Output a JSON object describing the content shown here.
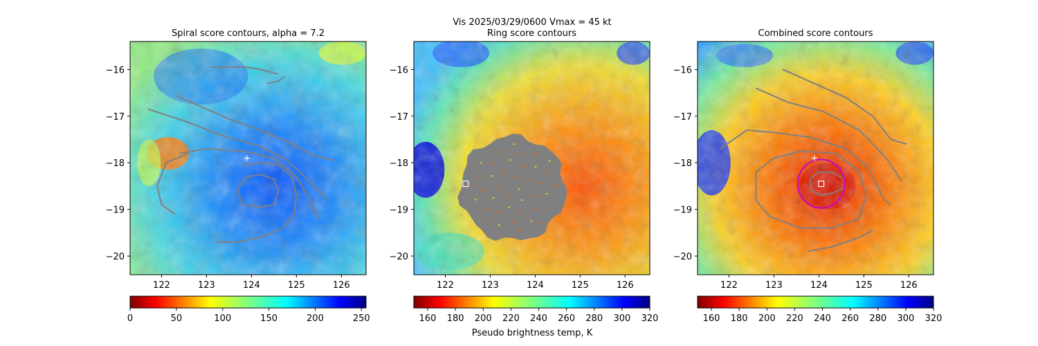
{
  "suptitle": "Vis  2025/03/29/0600    Vmax = 45 kt",
  "colorbar_label": "Pseudo brightness temp, K",
  "colors": {
    "contour": "#808080",
    "ring": "#cc00cc",
    "marker": "#ffffff",
    "mask": "#808080"
  },
  "chart_data": [
    {
      "type": "heatmap",
      "title": "Spiral score contours, alpha =  7.2",
      "xlim": [
        121.3,
        126.55
      ],
      "ylim": [
        -20.4,
        -15.4
      ],
      "xticks": [
        122,
        123,
        124,
        125,
        126
      ],
      "xtick_labels": [
        "122",
        "123",
        "124",
        "125",
        "126"
      ],
      "yticks": [
        -16,
        -17,
        -18,
        -19,
        -20
      ],
      "ytick_labels": [
        "−16",
        "−17",
        "−18",
        "−19",
        "−20"
      ],
      "colormap": "jet_r",
      "colorbar": {
        "range": [
          0,
          255
        ],
        "ticks": [
          0,
          50,
          100,
          150,
          200,
          250
        ],
        "tick_labels": [
          "0",
          "50",
          "100",
          "150",
          "200",
          "250"
        ]
      },
      "markers": [
        {
          "kind": "plus",
          "x": 123.9,
          "y": -17.9
        }
      ],
      "contours": [
        [
          [
            124.6,
            -16.1
          ],
          [
            124.2,
            -16.0
          ],
          [
            123.9,
            -15.95
          ],
          [
            123.6,
            -15.95
          ],
          [
            123.3,
            -15.95
          ],
          [
            123.1,
            -15.95
          ]
        ],
        [
          [
            124.75,
            -16.15
          ],
          [
            124.6,
            -16.25
          ],
          [
            124.35,
            -16.3
          ]
        ],
        [
          [
            122.3,
            -16.55
          ],
          [
            123.0,
            -16.85
          ],
          [
            123.6,
            -17.1
          ],
          [
            124.2,
            -17.3
          ],
          [
            124.8,
            -17.55
          ],
          [
            125.4,
            -17.85
          ],
          [
            125.85,
            -17.95
          ]
        ],
        [
          [
            121.7,
            -16.85
          ],
          [
            122.5,
            -17.1
          ],
          [
            123.3,
            -17.4
          ],
          [
            124.2,
            -17.65
          ],
          [
            124.8,
            -17.95
          ],
          [
            125.3,
            -18.4
          ],
          [
            125.7,
            -18.8
          ]
        ],
        [
          [
            122.4,
            -17.8
          ],
          [
            123.0,
            -17.7
          ],
          [
            123.8,
            -17.75
          ],
          [
            124.5,
            -17.9
          ],
          [
            125.0,
            -18.3
          ],
          [
            125.3,
            -18.8
          ],
          [
            125.5,
            -19.2
          ]
        ],
        [
          [
            121.9,
            -18.5
          ],
          [
            122.1,
            -18.0
          ],
          [
            122.6,
            -17.8
          ]
        ],
        [
          [
            121.9,
            -18.5
          ],
          [
            122.0,
            -18.9
          ],
          [
            122.3,
            -19.1
          ]
        ],
        [
          [
            123.2,
            -19.7
          ],
          [
            123.7,
            -19.7
          ],
          [
            124.2,
            -19.6
          ],
          [
            124.7,
            -19.4
          ],
          [
            124.95,
            -19.1
          ],
          [
            125.0,
            -18.7
          ],
          [
            124.9,
            -18.3
          ],
          [
            124.6,
            -18.05
          ],
          [
            124.2,
            -18.0
          ],
          [
            123.8,
            -18.05
          ]
        ],
        [
          [
            123.8,
            -18.9
          ],
          [
            124.2,
            -18.95
          ],
          [
            124.5,
            -18.9
          ],
          [
            124.6,
            -18.6
          ],
          [
            124.5,
            -18.35
          ],
          [
            124.2,
            -18.25
          ],
          [
            123.9,
            -18.3
          ],
          [
            123.7,
            -18.55
          ],
          [
            123.75,
            -18.8
          ],
          [
            123.8,
            -18.9
          ]
        ]
      ]
    },
    {
      "type": "heatmap",
      "title": "Ring score contours",
      "xlim": [
        121.3,
        126.55
      ],
      "ylim": [
        -20.4,
        -15.4
      ],
      "xticks": [
        122,
        123,
        124,
        125,
        126
      ],
      "xtick_labels": [
        "122",
        "123",
        "124",
        "125",
        "126"
      ],
      "yticks": [
        -16,
        -17,
        -18,
        -19,
        -20
      ],
      "ytick_labels": [
        "−16",
        "−17",
        "−18",
        "−19",
        "−20"
      ],
      "colormap": "jet_r",
      "colorbar": {
        "range": [
          150,
          320
        ],
        "ticks": [
          160,
          180,
          200,
          220,
          240,
          260,
          280,
          300,
          320
        ],
        "tick_labels": [
          "160",
          "180",
          "200",
          "220",
          "240",
          "260",
          "280",
          "300",
          "320"
        ]
      },
      "markers": [
        {
          "kind": "square",
          "x": 122.45,
          "y": -18.45
        }
      ],
      "masked_region": {
        "center": [
          123.5,
          -18.55
        ],
        "radius_deg": 1.12
      },
      "contours": []
    },
    {
      "type": "heatmap",
      "title": "Combined score contours",
      "xlim": [
        121.3,
        126.55
      ],
      "ylim": [
        -20.4,
        -15.4
      ],
      "xticks": [
        122,
        123,
        124,
        125,
        126
      ],
      "xtick_labels": [
        "122",
        "123",
        "124",
        "125",
        "126"
      ],
      "yticks": [
        -16,
        -17,
        -18,
        -19,
        -20
      ],
      "ytick_labels": [
        "−16",
        "−17",
        "−18",
        "−19",
        "−20"
      ],
      "colormap": "jet_r",
      "colorbar": {
        "range": [
          150,
          320
        ],
        "ticks": [
          160,
          180,
          200,
          220,
          240,
          260,
          280,
          300,
          320
        ],
        "tick_labels": [
          "160",
          "180",
          "200",
          "220",
          "240",
          "260",
          "280",
          "300",
          "320"
        ]
      },
      "markers": [
        {
          "kind": "plus",
          "x": 123.9,
          "y": -17.9
        },
        {
          "kind": "square",
          "x": 124.05,
          "y": -18.45
        }
      ],
      "ring": {
        "center": [
          124.05,
          -18.45
        ],
        "radius_deg": 0.52
      },
      "contours": [
        [
          [
            123.2,
            -16.0
          ],
          [
            123.9,
            -16.3
          ],
          [
            124.6,
            -16.6
          ],
          [
            125.2,
            -17.0
          ],
          [
            125.6,
            -17.5
          ],
          [
            125.95,
            -17.6
          ]
        ],
        [
          [
            122.6,
            -16.4
          ],
          [
            123.3,
            -16.7
          ],
          [
            124.1,
            -16.9
          ],
          [
            124.9,
            -17.3
          ],
          [
            125.5,
            -17.9
          ],
          [
            125.85,
            -18.4
          ]
        ],
        [
          [
            121.8,
            -17.7
          ],
          [
            122.4,
            -17.3
          ],
          [
            123.0,
            -17.35
          ],
          [
            123.8,
            -17.45
          ],
          [
            124.6,
            -17.7
          ],
          [
            125.1,
            -18.1
          ],
          [
            125.45,
            -18.8
          ],
          [
            125.6,
            -18.9
          ]
        ],
        [
          [
            122.9,
            -19.15
          ],
          [
            122.6,
            -18.8
          ],
          [
            122.6,
            -18.2
          ],
          [
            123.0,
            -17.9
          ],
          [
            123.6,
            -17.75
          ],
          [
            124.4,
            -17.8
          ],
          [
            124.9,
            -18.2
          ],
          [
            125.05,
            -18.7
          ],
          [
            124.9,
            -19.2
          ],
          [
            124.3,
            -19.4
          ],
          [
            123.6,
            -19.4
          ],
          [
            122.9,
            -19.15
          ]
        ],
        [
          [
            123.75,
            -19.9
          ],
          [
            124.3,
            -19.8
          ],
          [
            124.9,
            -19.6
          ],
          [
            125.2,
            -19.45
          ]
        ],
        [
          [
            124.05,
            -18.7
          ],
          [
            124.3,
            -18.65
          ],
          [
            124.55,
            -18.55
          ],
          [
            124.55,
            -18.35
          ],
          [
            124.3,
            -18.2
          ],
          [
            124.0,
            -18.2
          ],
          [
            123.8,
            -18.35
          ],
          [
            123.85,
            -18.6
          ],
          [
            124.05,
            -18.7
          ]
        ]
      ]
    }
  ]
}
